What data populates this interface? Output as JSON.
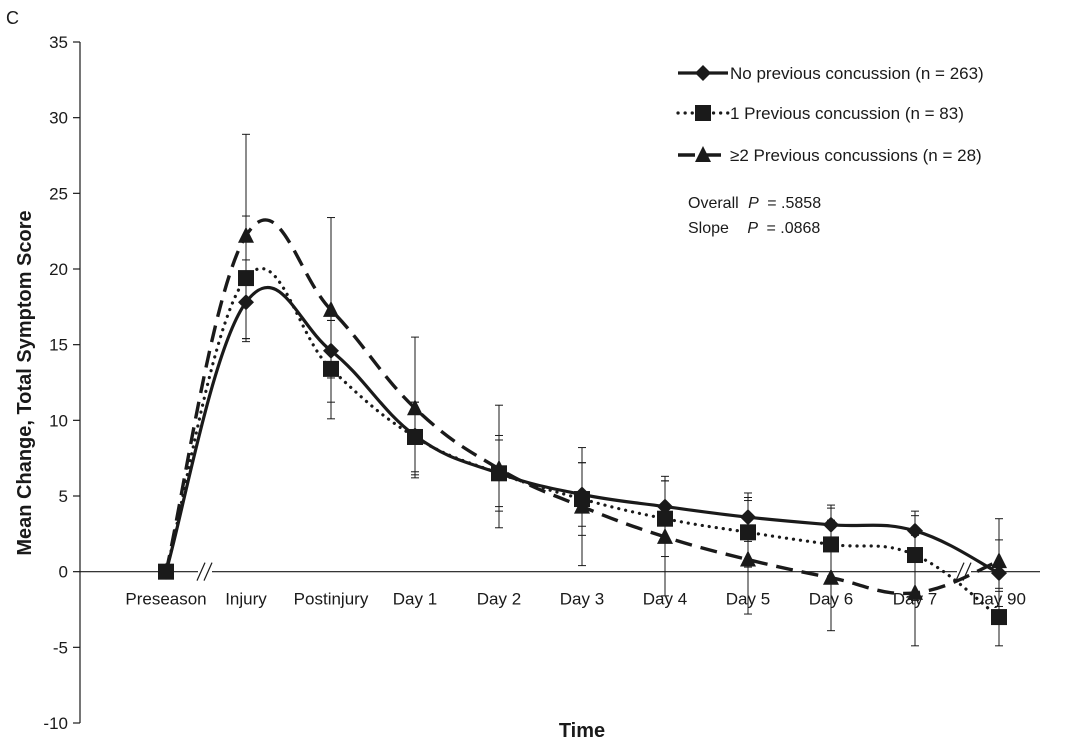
{
  "panel_label": "C",
  "chart_data": {
    "type": "line",
    "xlabel": "Time",
    "ylabel": "Mean Change, Total Symptom Score",
    "ylim": [
      -10,
      35
    ],
    "yticks": [
      -10,
      -5,
      0,
      5,
      10,
      15,
      20,
      25,
      30,
      35
    ],
    "categories": [
      "Preseason",
      "Injury",
      "Postinjury",
      "Day 1",
      "Day 2",
      "Day 3",
      "Day 4",
      "Day 5",
      "Day 6",
      "Day 7",
      "Day 90"
    ],
    "axis_breaks": [
      "between Preseason and Injury",
      "between Day 7 and Day 90"
    ],
    "legend_position": "top-right",
    "series": [
      {
        "name": "No previous concussion (n = 263)",
        "line_style": "solid",
        "marker": "diamond",
        "values": [
          0,
          17.8,
          14.6,
          9.0,
          6.5,
          5.1,
          4.3,
          3.6,
          3.1,
          2.7,
          -0.1
        ],
        "error_low": [
          null,
          15.2,
          12.8,
          6.4,
          4.3,
          3.0,
          2.3,
          2.0,
          1.6,
          1.3,
          -2.3
        ],
        "error_high": [
          null,
          20.6,
          16.6,
          11.2,
          8.7,
          7.2,
          6.3,
          5.2,
          4.4,
          4.0,
          2.1
        ]
      },
      {
        "name": "1 Previous concussion (n = 83)",
        "line_style": "dotted",
        "marker": "square",
        "values": [
          0,
          19.4,
          13.4,
          8.9,
          6.5,
          4.8,
          3.5,
          2.6,
          1.8,
          1.1,
          -3.0
        ],
        "error_low": [
          null,
          15.4,
          10.1,
          6.6,
          4.0,
          2.4,
          1.0,
          0.3,
          -0.8,
          -1.9,
          -4.9
        ],
        "error_high": [
          null,
          23.5,
          16.6,
          11.2,
          9.0,
          7.2,
          6.0,
          4.9,
          4.2,
          3.7,
          -1.1
        ]
      },
      {
        "name": "≥2 Previous concussions (n = 28)",
        "line_style": "dashed",
        "marker": "triangle",
        "values": [
          0,
          22.2,
          17.3,
          10.8,
          6.8,
          4.3,
          2.3,
          0.8,
          -0.4,
          -1.4,
          0.7
        ],
        "error_low": [
          null,
          15.4,
          11.2,
          6.2,
          2.9,
          0.4,
          -1.6,
          -2.8,
          -3.9,
          -4.9,
          -1.3
        ],
        "error_high": [
          null,
          28.9,
          23.4,
          15.5,
          11.0,
          8.2,
          6.0,
          4.7,
          3.4,
          2.4,
          3.5
        ]
      }
    ]
  },
  "stats": {
    "overall_label": "Overall",
    "overall_p": "P",
    "overall_value": "= .5858",
    "slope_label": "Slope",
    "slope_p": "P",
    "slope_value": "= .0868"
  }
}
